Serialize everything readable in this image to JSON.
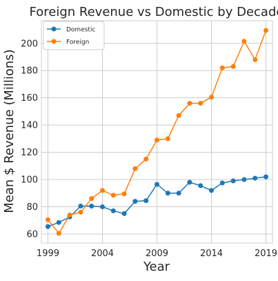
{
  "chart_data": {
    "type": "line",
    "title": "Foreign Revenue vs Domestic by Decade",
    "xlabel": "Year",
    "ylabel": "Mean $ Revenue (Millions)",
    "xlim": [
      1998.4,
      2019.6
    ],
    "ylim": [
      53.4,
      216.6
    ],
    "x_ticks": [
      1999,
      2004,
      2009,
      2014,
      2019
    ],
    "y_ticks": [
      60,
      80,
      100,
      120,
      140,
      160,
      180,
      200
    ],
    "grid": true,
    "legend_position": "top-left",
    "x": [
      1999,
      2000,
      2001,
      2002,
      2003,
      2004,
      2005,
      2006,
      2007,
      2008,
      2009,
      2010,
      2011,
      2012,
      2013,
      2014,
      2015,
      2016,
      2017,
      2018,
      2019
    ],
    "series": [
      {
        "name": "Domestic",
        "color": "#1f77b4",
        "values": [
          65.5,
          68.5,
          72.5,
          80.5,
          80.5,
          80.0,
          77.0,
          75.0,
          84.0,
          84.5,
          96.5,
          90.0,
          90.0,
          98.0,
          95.5,
          92.0,
          97.5,
          99.0,
          100.0,
          101.0,
          102.0
        ]
      },
      {
        "name": "Foreign",
        "color": "#ff7f0e",
        "values": [
          70.5,
          60.5,
          74.0,
          76.0,
          86.0,
          92.0,
          88.5,
          89.5,
          108.0,
          115.0,
          129.0,
          130.0,
          147.0,
          156.0,
          156.0,
          160.5,
          182.0,
          183.0,
          201.5,
          188.0,
          209.5
        ]
      }
    ]
  }
}
